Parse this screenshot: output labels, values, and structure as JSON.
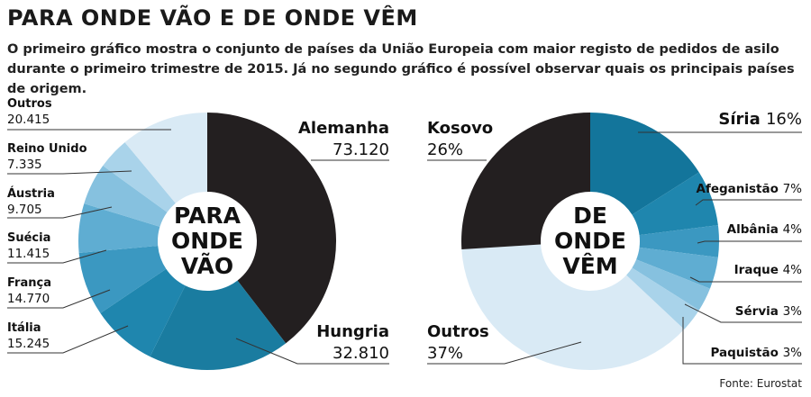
{
  "header": {
    "title": "PARA ONDE VÃO E DE ONDE VÊM",
    "subtitle": "O primeiro gráfico mostra o conjunto de países da União Europeia com maior registo de pedidos de asilo durante o primeiro trimestre de 2015. Já no segundo gráfico é possível observar quais os principais países de origem."
  },
  "source": "Fonte: Eurostat",
  "chart_data": [
    {
      "type": "pie",
      "variant": "donut",
      "center_label": [
        "PARA",
        "ONDE",
        "VÃO"
      ],
      "categories": [
        "Alemanha",
        "Hungria",
        "Itália",
        "França",
        "Suécia",
        "Áustria",
        "Reino Unido",
        "Outros"
      ],
      "values": [
        73120,
        32810,
        15245,
        14770,
        11415,
        9705,
        7335,
        20415
      ],
      "value_labels": [
        "73.120",
        "32.810",
        "15.245",
        "14.770",
        "11.415",
        "9.705",
        "7.335",
        "20.415"
      ],
      "colors": [
        "#231f20",
        "#1a7ca0",
        "#1f86ae",
        "#3b98c1",
        "#5fadd2",
        "#86c1df",
        "#a9d3ea",
        "#d9eaf5"
      ]
    },
    {
      "type": "pie",
      "variant": "donut",
      "center_label": [
        "DE",
        "ONDE",
        "VÊM"
      ],
      "categories": [
        "Síria",
        "Afeganistão",
        "Albânia",
        "Iraque",
        "Sérvia",
        "Paquistão",
        "Outros",
        "Kosovo"
      ],
      "values": [
        16,
        7,
        4,
        4,
        3,
        3,
        37,
        26
      ],
      "value_labels": [
        "16%",
        "7%",
        "4%",
        "4%",
        "3%",
        "3%",
        "37%",
        "26%"
      ],
      "colors": [
        "#13759b",
        "#1f86ae",
        "#3b98c1",
        "#5fadd2",
        "#86c1df",
        "#a9d3ea",
        "#d9eaf5",
        "#231f20"
      ]
    }
  ]
}
